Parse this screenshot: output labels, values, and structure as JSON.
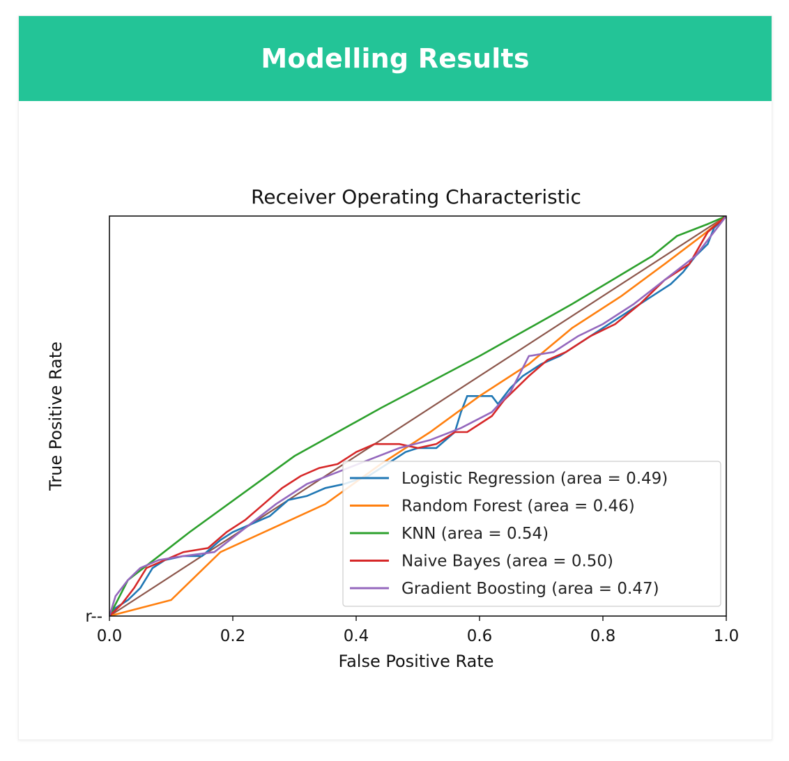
{
  "header": {
    "title": "Modelling Results"
  },
  "colors": {
    "header_bg": "#23c497",
    "header_text": "#ffffff"
  },
  "chart_data": {
    "type": "line",
    "title": "Receiver Operating Characteristic",
    "xlabel": "False Positive Rate",
    "ylabel": "True Positive Rate",
    "xlim": [
      0,
      1
    ],
    "ylim": [
      0,
      1
    ],
    "xticks": [
      "0.0",
      "0.2",
      "0.4",
      "0.6",
      "0.8",
      "1.0"
    ],
    "yticks": [
      "r--"
    ],
    "legend_position": "lower-right",
    "series": [
      {
        "name": "Logistic Regression",
        "legend_label": "Logistic Regression (area = 0.49)",
        "auc": 0.49,
        "color": "#1f77b4",
        "x": [
          0,
          0.01,
          0.03,
          0.05,
          0.07,
          0.09,
          0.12,
          0.15,
          0.18,
          0.2,
          0.23,
          0.26,
          0.29,
          0.32,
          0.35,
          0.38,
          0.4,
          0.42,
          0.45,
          0.48,
          0.5,
          0.53,
          0.56,
          0.57,
          0.58,
          0.62,
          0.63,
          0.65,
          0.67,
          0.7,
          0.73,
          0.76,
          0.79,
          0.82,
          0.85,
          0.88,
          0.91,
          0.93,
          0.95,
          0.97,
          0.98,
          1.0
        ],
        "y": [
          0,
          0.02,
          0.04,
          0.07,
          0.12,
          0.14,
          0.15,
          0.15,
          0.19,
          0.21,
          0.23,
          0.25,
          0.29,
          0.3,
          0.32,
          0.33,
          0.34,
          0.35,
          0.38,
          0.41,
          0.42,
          0.42,
          0.46,
          0.51,
          0.55,
          0.55,
          0.53,
          0.57,
          0.6,
          0.63,
          0.65,
          0.68,
          0.71,
          0.74,
          0.77,
          0.8,
          0.83,
          0.86,
          0.9,
          0.93,
          0.97,
          1.0
        ]
      },
      {
        "name": "Random Forest",
        "legend_label": "Random Forest (area = 0.46)",
        "auc": 0.46,
        "color": "#ff7f0e",
        "x": [
          0,
          0.1,
          0.18,
          0.35,
          0.44,
          0.52,
          0.6,
          0.68,
          0.75,
          0.83,
          0.9,
          0.96,
          1.0
        ],
        "y": [
          0,
          0.04,
          0.16,
          0.28,
          0.38,
          0.46,
          0.55,
          0.63,
          0.72,
          0.8,
          0.88,
          0.95,
          1.0
        ]
      },
      {
        "name": "KNN",
        "legend_label": "KNN (area = 0.54)",
        "auc": 0.54,
        "color": "#2ca02c",
        "x": [
          0,
          0.03,
          0.13,
          0.3,
          0.44,
          0.6,
          0.75,
          0.88,
          0.92,
          0.97,
          1.0
        ],
        "y": [
          0,
          0.09,
          0.21,
          0.4,
          0.52,
          0.65,
          0.78,
          0.9,
          0.95,
          0.98,
          1.0
        ]
      },
      {
        "name": "Naive Bayes",
        "legend_label": "Naive Bayes (area = 0.50)",
        "auc": 0.5,
        "color": "#d62728",
        "x": [
          0,
          0.02,
          0.04,
          0.06,
          0.09,
          0.12,
          0.16,
          0.19,
          0.22,
          0.25,
          0.28,
          0.31,
          0.34,
          0.37,
          0.4,
          0.43,
          0.47,
          0.5,
          0.53,
          0.56,
          0.58,
          0.6,
          0.62,
          0.64,
          0.66,
          0.68,
          0.71,
          0.74,
          0.78,
          0.82,
          0.86,
          0.9,
          0.94,
          0.97,
          1.0
        ],
        "y": [
          0,
          0.03,
          0.07,
          0.12,
          0.14,
          0.16,
          0.17,
          0.21,
          0.24,
          0.28,
          0.32,
          0.35,
          0.37,
          0.38,
          0.41,
          0.43,
          0.43,
          0.42,
          0.43,
          0.46,
          0.46,
          0.48,
          0.5,
          0.54,
          0.57,
          0.6,
          0.64,
          0.66,
          0.7,
          0.73,
          0.78,
          0.84,
          0.88,
          0.96,
          1.0
        ]
      },
      {
        "name": "Gradient Boosting",
        "legend_label": "Gradient Boosting (area = 0.47)",
        "auc": 0.47,
        "color": "#9467bd",
        "x": [
          0,
          0.01,
          0.03,
          0.05,
          0.08,
          0.12,
          0.17,
          0.22,
          0.27,
          0.32,
          0.37,
          0.42,
          0.47,
          0.52,
          0.57,
          0.62,
          0.65,
          0.68,
          0.72,
          0.76,
          0.8,
          0.85,
          0.9,
          0.95,
          0.98,
          1.0
        ],
        "y": [
          0,
          0.05,
          0.09,
          0.12,
          0.14,
          0.15,
          0.16,
          0.22,
          0.28,
          0.33,
          0.36,
          0.39,
          0.42,
          0.44,
          0.47,
          0.51,
          0.56,
          0.65,
          0.66,
          0.7,
          0.73,
          0.78,
          0.84,
          0.9,
          0.96,
          1.0
        ]
      },
      {
        "name": "r--",
        "legend_label": "",
        "color": "#8c564b",
        "x": [
          0,
          1
        ],
        "y": [
          0,
          1
        ]
      }
    ]
  }
}
